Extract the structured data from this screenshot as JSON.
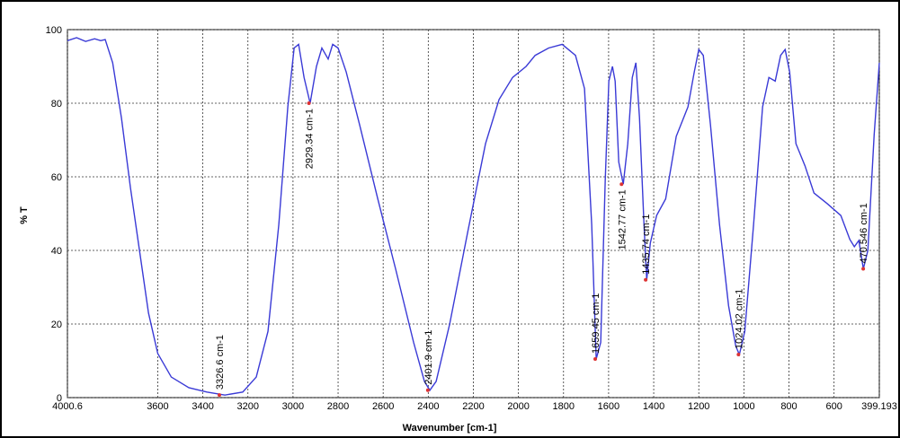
{
  "chart_data": {
    "type": "line",
    "xlabel": "Wavenumber [cm-1]",
    "ylabel": "% T",
    "xlim": [
      4000.6,
      399.193
    ],
    "ylim": [
      0,
      100
    ],
    "xticks": [
      {
        "value": 4000.6,
        "label": "4000.6"
      },
      3600,
      3400,
      3200,
      3000,
      2800,
      2600,
      2400,
      2200,
      2000,
      1800,
      1600,
      1400,
      1200,
      1000,
      800,
      600,
      {
        "value": 399.193,
        "label": "399.193"
      }
    ],
    "yticks": [
      0,
      20,
      40,
      60,
      80,
      100
    ],
    "grid": true,
    "series": [
      {
        "color": "#3a3ad6",
        "x": [
          4000.6,
          3960,
          3920,
          3880,
          3853,
          3833,
          3800,
          3761,
          3721,
          3681,
          3641,
          3600,
          3540,
          3462,
          3382,
          3302,
          3223,
          3163,
          3111,
          3063,
          3023,
          2995,
          2975,
          2951,
          2924,
          2896,
          2872,
          2844,
          2824,
          2800,
          2764,
          2704,
          2624,
          2545,
          2465,
          2417,
          2393,
          2365,
          2305,
          2225,
          2146,
          2086,
          2026,
          1966,
          1926,
          1866,
          1806,
          1747,
          1707,
          1675,
          1655,
          1635,
          1615,
          1599,
          1583,
          1571,
          1555,
          1535,
          1515,
          1495,
          1479,
          1463,
          1443,
          1431,
          1415,
          1387,
          1347,
          1300,
          1248,
          1220,
          1200,
          1180,
          1148,
          1108,
          1068,
          1036,
          1020,
          996,
          957,
          917,
          889,
          861,
          837,
          817,
          797,
          769,
          729,
          689,
          630,
          570,
          530,
          510,
          490,
          470,
          450,
          422,
          399.193
        ],
        "values": [
          97,
          97.8,
          96.8,
          97.5,
          97,
          97.3,
          91,
          76,
          57,
          40,
          23,
          12,
          5.6,
          2.7,
          1.5,
          0.7,
          1.5,
          5.6,
          18,
          47,
          79,
          95,
          96,
          87,
          80,
          90,
          95,
          92,
          96,
          95,
          88.5,
          74,
          54,
          35,
          15,
          4.4,
          2,
          4.4,
          20,
          45,
          69,
          81,
          87,
          90,
          93,
          95,
          96,
          93,
          84,
          47,
          10.5,
          15,
          59,
          86,
          90,
          86,
          64,
          58,
          69,
          87,
          91,
          76,
          47,
          32,
          42,
          49.5,
          54,
          71,
          79,
          88.5,
          94.6,
          93,
          74,
          47,
          25,
          14,
          11.7,
          18,
          47,
          79,
          87,
          86,
          93,
          94.6,
          88.5,
          69,
          63,
          55.6,
          52.7,
          49.5,
          43,
          41,
          42.7,
          35,
          40,
          71.5,
          91
        ]
      }
    ],
    "annotations": [
      {
        "text": "3326.6 cm-1",
        "x": 3326.6,
        "y": 0.7
      },
      {
        "text": "2929.34 cm-1",
        "x": 2929.34,
        "y": 80
      },
      {
        "text": "2401.9 cm-1",
        "x": 2401.9,
        "y": 2
      },
      {
        "text": "1659.45 cm-1",
        "x": 1659.45,
        "y": 10.5
      },
      {
        "text": "1542.77 cm-1",
        "x": 1542.77,
        "y": 58
      },
      {
        "text": "1435.74 cm-1",
        "x": 1435.74,
        "y": 32
      },
      {
        "text": "1024.02 cm-1",
        "x": 1024.02,
        "y": 11.7
      },
      {
        "text": "470.546 cm-1",
        "x": 470.546,
        "y": 35
      }
    ]
  }
}
